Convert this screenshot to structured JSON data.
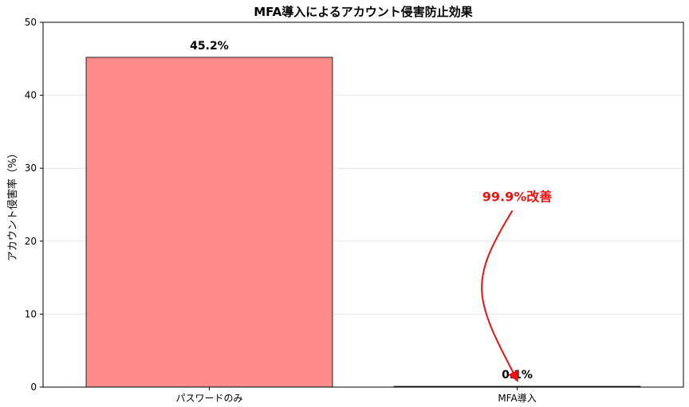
{
  "chart_data": {
    "type": "bar",
    "title": "MFA導入によるアカウント侵害防止効果",
    "xlabel": "",
    "ylabel": "アカウント侵害率（%）",
    "categories": [
      "パスワードのみ",
      "MFA導入"
    ],
    "values": [
      45.2,
      0.1
    ],
    "value_labels": [
      "45.2%",
      "0.1%"
    ],
    "ylim": [
      0,
      50
    ],
    "yticks": [
      0,
      10,
      20,
      30,
      40,
      50
    ],
    "grid": "y",
    "bar_colors": [
      "#ff8a8a",
      "#8ad6a8"
    ],
    "annotation": {
      "text": "99.9%改善",
      "color": "#ee1111",
      "text_at": [
        1.0,
        25.5
      ],
      "arrow_to": [
        1.0,
        0.3
      ]
    }
  }
}
